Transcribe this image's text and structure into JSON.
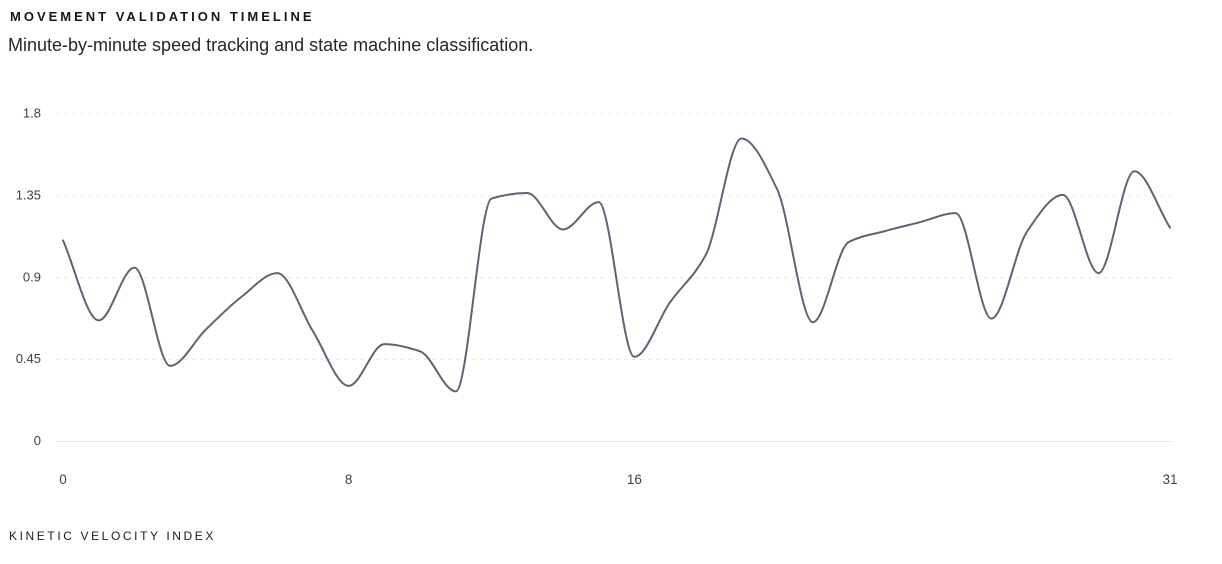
{
  "header": {
    "title": "MOVEMENT VALIDATION TIMELINE",
    "subtitle": "Minute-by-minute speed tracking and state machine classification."
  },
  "footer": {
    "label": "KINETIC VELOCITY INDEX"
  },
  "colors": {
    "line": "#5b6573",
    "grid": "#e7e7ea",
    "axis": "#e4e4e7",
    "tick_text": "#3f3f46",
    "background": "#ffffff"
  },
  "chart_data": {
    "type": "line",
    "title": "MOVEMENT VALIDATION TIMELINE",
    "subtitle": "Minute-by-minute speed tracking and state machine classification.",
    "xlabel": "",
    "ylabel": "KINETIC VELOCITY INDEX",
    "x": [
      0,
      1,
      2,
      3,
      4,
      5,
      6,
      7,
      8,
      9,
      10,
      11,
      12,
      13,
      14,
      15,
      16,
      17,
      18,
      19,
      20,
      21,
      22,
      23,
      24,
      25,
      26,
      27,
      28,
      29,
      30,
      31
    ],
    "series": [
      {
        "name": "kinetic velocity index",
        "values": [
          1.1,
          0.66,
          0.95,
          0.41,
          0.61,
          0.79,
          0.92,
          0.6,
          0.3,
          0.53,
          0.49,
          0.27,
          1.33,
          1.36,
          1.16,
          1.31,
          0.46,
          0.76,
          1.02,
          1.66,
          1.38,
          0.65,
          1.09,
          1.15,
          1.2,
          1.25,
          0.67,
          1.15,
          1.35,
          0.92,
          1.48,
          1.17
        ]
      }
    ],
    "xlim": [
      0,
      31
    ],
    "ylim": [
      0,
      1.8
    ],
    "xticks": [
      0,
      8,
      16,
      31
    ],
    "yticks": [
      0,
      0.45,
      0.9,
      1.35,
      1.8
    ],
    "grid": "horizontal-dotted",
    "legend": "none",
    "smooth": true
  }
}
